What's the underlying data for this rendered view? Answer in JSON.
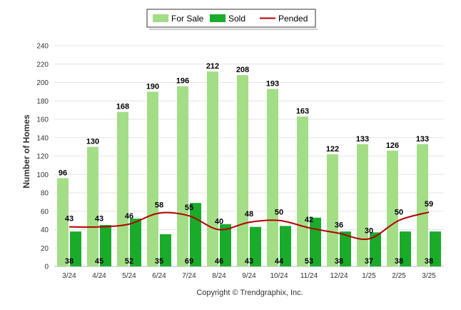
{
  "chart_data": {
    "type": "bar",
    "categories": [
      "3/24",
      "4/24",
      "5/24",
      "6/24",
      "7/24",
      "8/24",
      "9/24",
      "10/24",
      "11/24",
      "12/24",
      "1/25",
      "2/25",
      "3/25"
    ],
    "series": [
      {
        "name": "For Sale",
        "type": "bar",
        "color": "#a3de87",
        "values": [
          96,
          130,
          168,
          190,
          196,
          212,
          208,
          193,
          163,
          122,
          133,
          126,
          133
        ]
      },
      {
        "name": "Sold",
        "type": "bar",
        "color": "#1aab2a",
        "values": [
          38,
          45,
          52,
          35,
          69,
          46,
          43,
          44,
          53,
          38,
          37,
          38,
          38
        ]
      },
      {
        "name": "Pended",
        "type": "line",
        "color": "#b30000",
        "values": [
          43,
          43,
          46,
          58,
          55,
          40,
          48,
          50,
          42,
          36,
          30,
          50,
          59
        ]
      }
    ],
    "ylabel": "Number of Homes",
    "ylim": [
      0,
      240
    ],
    "yticks": [
      0,
      20,
      40,
      60,
      80,
      100,
      120,
      140,
      160,
      180,
      200,
      220,
      240
    ],
    "grid": true,
    "legend_position": "top-center"
  },
  "footer": {
    "copyright": "Copyright © Trendgraphix, Inc."
  }
}
